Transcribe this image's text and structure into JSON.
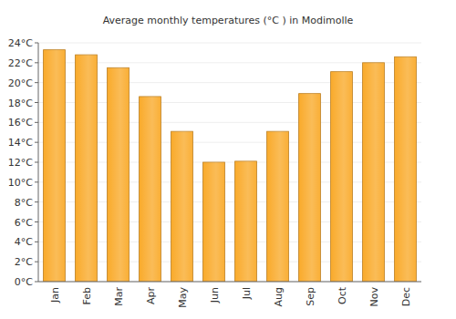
{
  "chart_data": {
    "type": "bar",
    "title": "Average monthly temperatures (°C ) in Modimolle",
    "categories": [
      "Jan",
      "Feb",
      "Mar",
      "Apr",
      "May",
      "Jun",
      "Jul",
      "Aug",
      "Sep",
      "Oct",
      "Nov",
      "Dec"
    ],
    "values": [
      23.3,
      22.8,
      21.5,
      18.6,
      15.1,
      12.0,
      12.1,
      15.1,
      18.9,
      21.1,
      22.0,
      22.6
    ],
    "color": "#f9a620",
    "ylim": [
      0,
      24
    ],
    "yticks": [
      {
        "value": 0,
        "label": "0°C"
      },
      {
        "value": 2,
        "label": "2°C"
      },
      {
        "value": 4,
        "label": "4°C"
      },
      {
        "value": 6,
        "label": "6°C"
      },
      {
        "value": 8,
        "label": "8°C"
      },
      {
        "value": 10,
        "label": "10°C"
      },
      {
        "value": 12,
        "label": "12°C"
      },
      {
        "value": 14,
        "label": "14°C"
      },
      {
        "value": 16,
        "label": "16°C"
      },
      {
        "value": 18,
        "label": "18°C"
      },
      {
        "value": 20,
        "label": "20°C"
      },
      {
        "value": 22,
        "label": "22°C"
      },
      {
        "value": 24,
        "label": "24°C"
      }
    ],
    "grid": true
  }
}
